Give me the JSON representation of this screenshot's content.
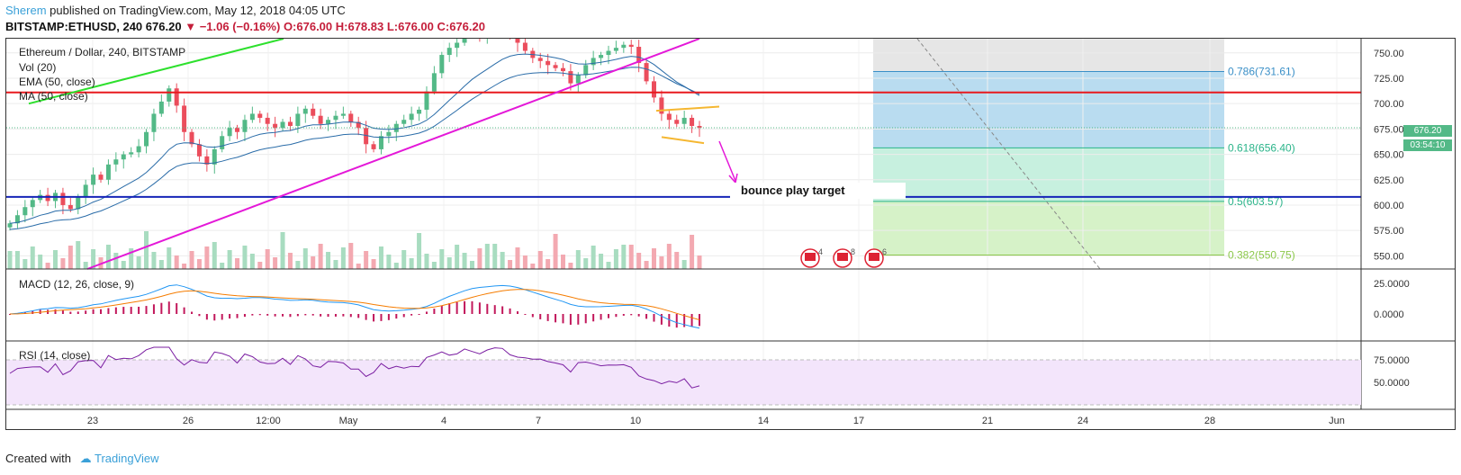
{
  "header": {
    "author": "Sherem",
    "published": "published on TradingView.com, May 12, 2018 04:05 UTC",
    "symbol": "BITSTAMP:ETHUSD, 240",
    "price": "676.20",
    "arrow": "▼",
    "change": "−1.06 (−0.16%)",
    "ohlc": "O:676.00 H:678.83 L:676.00 C:676.20"
  },
  "legend": {
    "title": "Ethereum / Dollar, 240, BITSTAMP",
    "vol": "Vol (20)",
    "ema": "EMA (50, close)",
    "ma": "MA (50, close)",
    "macd": "MACD (12, 26, close, 9)",
    "rsi": "RSI (14, close)"
  },
  "annotation": {
    "text": "bounce play target"
  },
  "last_price": {
    "value": "676.20",
    "countdown": "03:54:10"
  },
  "events": [
    "4",
    "8",
    "6"
  ],
  "footer": {
    "created": "Created with",
    "brand": "TradingView"
  },
  "colors": {
    "up": "#53b987",
    "down": "#eb4d5c",
    "resistance": "#e8191e",
    "support": "#1624b8",
    "trend": "#e418d8",
    "green_line": "#2de02d",
    "ema": "#2a6ca8",
    "fib_blue": "#b9dcf0",
    "fib_green": "#c7f0df",
    "fib_lime": "#d6f2c8",
    "fib_grey": "#e6e6e6"
  },
  "chart_data": {
    "type": "candlestick",
    "x_ticks": [
      "23",
      "26",
      "12:00",
      "May",
      "4",
      "7",
      "10",
      "14",
      "17",
      "21",
      "24",
      "28",
      "Jun"
    ],
    "price_axis": {
      "ticks": [
        "750.00",
        "725.00",
        "700.00",
        "675.00",
        "650.00",
        "625.00",
        "600.00",
        "575.00",
        "550.00"
      ],
      "range": [
        537,
        764
      ]
    },
    "macd_axis": {
      "ticks": [
        "25.0000",
        "0.0000"
      ]
    },
    "rsi_axis": {
      "ticks": [
        "75.0000",
        "50.0000"
      ]
    },
    "closes": [
      582,
      590,
      598,
      605,
      610,
      604,
      612,
      600,
      596,
      608,
      620,
      630,
      625,
      640,
      645,
      650,
      652,
      658,
      672,
      690,
      702,
      715,
      698,
      672,
      660,
      648,
      640,
      655,
      668,
      676,
      672,
      684,
      690,
      686,
      680,
      676,
      682,
      678,
      690,
      695,
      688,
      680,
      684,
      688,
      690,
      682,
      676,
      660,
      655,
      668,
      672,
      680,
      684,
      690,
      694,
      712,
      730,
      748,
      755,
      760,
      770,
      772,
      768,
      770,
      775,
      778,
      770,
      760,
      752,
      745,
      742,
      738,
      735,
      732,
      720,
      728,
      738,
      745,
      748,
      752,
      755,
      758,
      756,
      740,
      722,
      706,
      690,
      684,
      680,
      686,
      678,
      676.2
    ],
    "fib_levels": [
      {
        "label": "0.786(731.61)",
        "value": 731.61
      },
      {
        "label": "0.618(656.40)",
        "value": 656.4
      },
      {
        "label": "0.5(603.57)",
        "value": 603.57
      },
      {
        "label": "0.382(550.75)",
        "value": 550.75
      }
    ],
    "resistance": 711,
    "support": 608
  }
}
